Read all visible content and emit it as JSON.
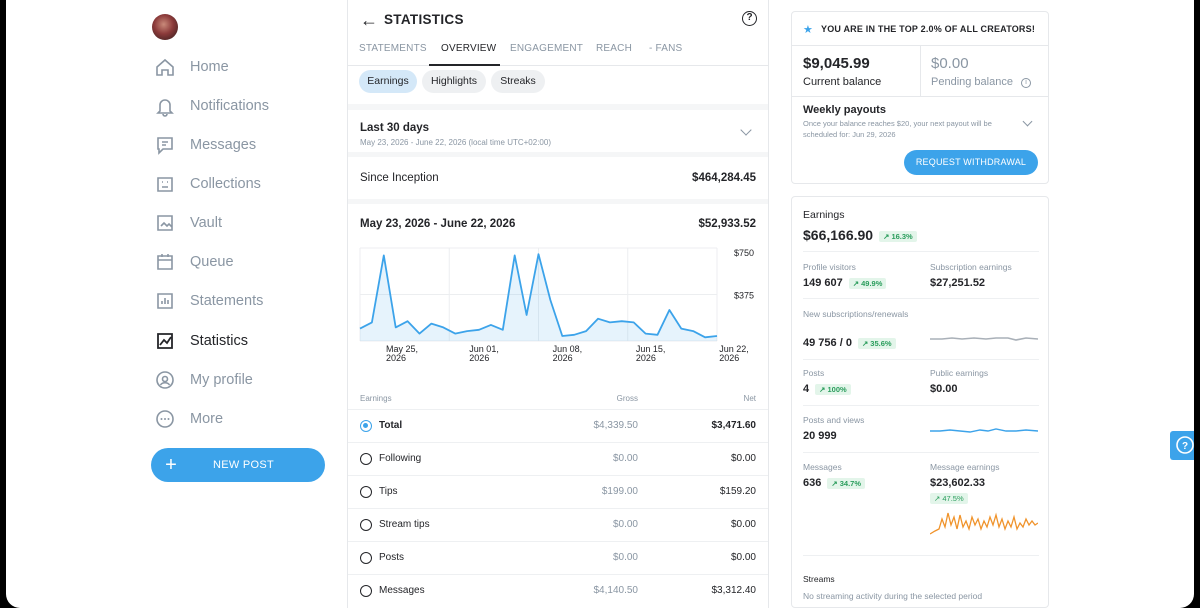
{
  "sidebar": {
    "items": [
      {
        "label": "Home",
        "icon": "home-icon"
      },
      {
        "label": "Notifications",
        "icon": "bell-icon"
      },
      {
        "label": "Messages",
        "icon": "message-icon"
      },
      {
        "label": "Collections",
        "icon": "collections-icon"
      },
      {
        "label": "Vault",
        "icon": "vault-icon"
      },
      {
        "label": "Queue",
        "icon": "calendar-icon"
      },
      {
        "label": "Statements",
        "icon": "statements-icon"
      },
      {
        "label": "Statistics",
        "icon": "statistics-icon",
        "active": true
      },
      {
        "label": "My profile",
        "icon": "profile-icon"
      },
      {
        "label": "More",
        "icon": "more-icon"
      }
    ],
    "new_post": "NEW POST"
  },
  "header": {
    "title": "STATISTICS"
  },
  "tabs": [
    "STATEMENTS",
    "OVERVIEW",
    "ENGAGEMENT",
    "REACH",
    "- FANS"
  ],
  "chips": [
    "Earnings",
    "Highlights",
    "Streaks"
  ],
  "period": {
    "title": "Last 30 days",
    "subtitle": "May 23, 2026 - June 22, 2026 (local time UTC+02:00)"
  },
  "since_inception": {
    "label": "Since Inception",
    "value": "$464,284.45"
  },
  "range": {
    "label": "May 23, 2026 - June 22, 2026",
    "value": "$52,933.52"
  },
  "chart_data": {
    "type": "area",
    "y_tick_labels": [
      "$750",
      "$375"
    ],
    "ylim": [
      0,
      750
    ],
    "x_tick_labels": [
      [
        "May 25,",
        "2026"
      ],
      [
        "Jun 01,",
        "2026"
      ],
      [
        "Jun 08,",
        "2026"
      ],
      [
        "Jun 15,",
        "2026"
      ],
      [
        "Jun 22,",
        "2026"
      ]
    ],
    "x": [
      "May 23",
      "May 24",
      "May 25",
      "May 26",
      "May 27",
      "May 28",
      "May 29",
      "May 30",
      "May 31",
      "Jun 01",
      "Jun 02",
      "Jun 03",
      "Jun 04",
      "Jun 05",
      "Jun 06",
      "Jun 07",
      "Jun 08",
      "Jun 09",
      "Jun 10",
      "Jun 11",
      "Jun 12",
      "Jun 13",
      "Jun 14",
      "Jun 15",
      "Jun 16",
      "Jun 17",
      "Jun 18",
      "Jun 19",
      "Jun 20",
      "Jun 21",
      "Jun 22"
    ],
    "values": [
      100,
      150,
      690,
      110,
      160,
      60,
      140,
      110,
      60,
      80,
      90,
      130,
      90,
      690,
      210,
      700,
      330,
      40,
      50,
      80,
      180,
      150,
      160,
      150,
      60,
      50,
      250,
      100,
      80,
      30,
      40
    ],
    "grid": true
  },
  "earnings_table": {
    "headers": [
      "Earnings",
      "Gross",
      "Net"
    ],
    "rows": [
      {
        "name": "Total",
        "gross": "$4,339.50",
        "net": "$3,471.60",
        "selected": true
      },
      {
        "name": "Following",
        "gross": "$0.00",
        "net": "$0.00"
      },
      {
        "name": "Tips",
        "gross": "$199.00",
        "net": "$159.20"
      },
      {
        "name": "Stream tips",
        "gross": "$0.00",
        "net": "$0.00"
      },
      {
        "name": "Posts",
        "gross": "$0.00",
        "net": "$0.00"
      },
      {
        "name": "Messages",
        "gross": "$4,140.50",
        "net": "$3,312.40"
      }
    ]
  },
  "top_banner": "YOU ARE IN THE TOP 2.0% OF ALL CREATORS!",
  "balance": {
    "current": "$9,045.99",
    "current_label": "Current balance",
    "pending": "$0.00",
    "pending_label": "Pending balance"
  },
  "payouts": {
    "title": "Weekly payouts",
    "note": "Once your balance reaches $20, your next payout will be scheduled for: Jun 29, 2026",
    "button": "REQUEST WITHDRAWAL"
  },
  "summary": {
    "earnings_label": "Earnings",
    "earnings_value": "$66,166.90",
    "earnings_change": "↗ 16.3%",
    "profile_visitors_label": "Profile visitors",
    "profile_visitors": "149 607",
    "profile_visitors_change": "↗ 49.9%",
    "sub_earnings_label": "Subscription earnings",
    "sub_earnings": "$27,251.52",
    "new_subs_label": "New subscriptions/renewals",
    "new_subs": "49 756 / 0",
    "new_subs_change": "↗ 35.6%",
    "posts_label": "Posts",
    "posts": "4",
    "posts_change": "↗ 100%",
    "public_earnings_label": "Public earnings",
    "public_earnings": "$0.00",
    "posts_views_label": "Posts and views",
    "posts_views": "20 999",
    "messages_label": "Messages",
    "messages": "636",
    "messages_change": "↗ 34.7%",
    "msg_earnings_label": "Message earnings",
    "msg_earnings": "$23,602.33",
    "msg_earnings_change": "↗ 47.5%",
    "streams_label": "Streams",
    "streams_note": "No streaming activity during the selected period"
  },
  "colors": {
    "accent": "#3ca3ea",
    "positive": "#2a9d5c",
    "spark_gray": "#a9b0b8",
    "spark_orange": "#f0932b"
  }
}
